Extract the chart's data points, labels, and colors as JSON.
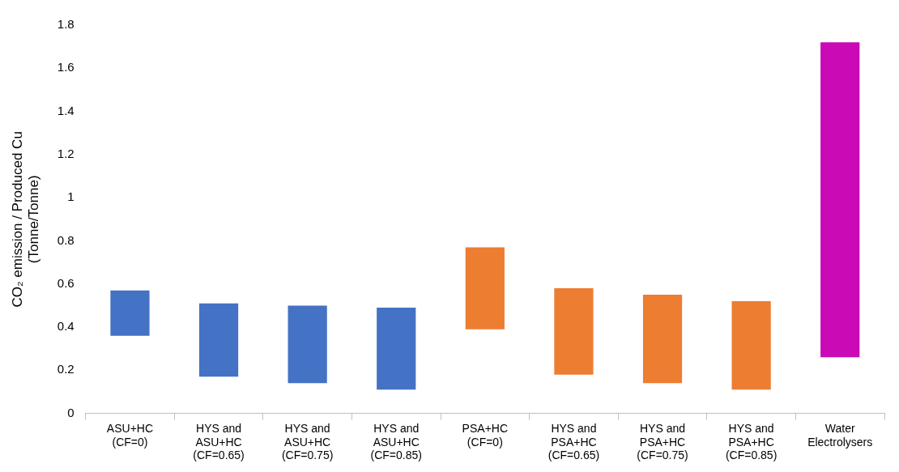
{
  "chart_data": {
    "type": "bar",
    "ylabel": "CO₂ emission / Produced Cu\n(Tonne/Tonne)",
    "categories": [
      "ASU+HC\n(CF=0)",
      "HYS and\nASU+HC\n(CF=0.65)",
      "HYS and\nASU+HC\n(CF=0.75)",
      "HYS and\nASU+HC\n(CF=0.85)",
      "PSA+HC\n(CF=0)",
      "HYS and\nPSA+HC\n(CF=0.65)",
      "HYS and\nPSA+HC\n(CF=0.75)",
      "HYS and\nPSA+HC\n(CF=0.85)",
      "Water\nElectrolysers"
    ],
    "base": [
      0.36,
      0.17,
      0.14,
      0.11,
      0.39,
      0.18,
      0.14,
      0.11,
      0.26
    ],
    "values": [
      0.21,
      0.34,
      0.36,
      0.38,
      0.38,
      0.4,
      0.41,
      0.41,
      1.46
    ],
    "colors": [
      "#4472c4",
      "#4472c4",
      "#4472c4",
      "#4472c4",
      "#ed7d31",
      "#ed7d31",
      "#ed7d31",
      "#ed7d31",
      "#c90ab5"
    ],
    "ylim": [
      0,
      1.8
    ],
    "yticks": [
      0,
      0.2,
      0.4,
      0.6,
      0.8,
      1,
      1.2,
      1.4,
      1.6,
      1.8
    ],
    "grid": false,
    "legend": false
  }
}
